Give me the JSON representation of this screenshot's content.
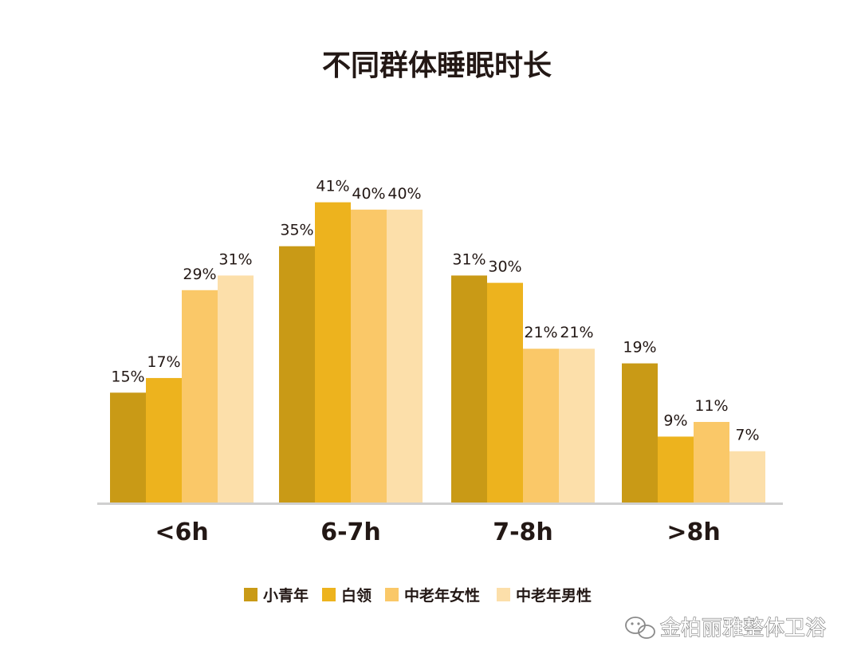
{
  "chart_data": {
    "type": "bar",
    "title": "不同群体睡眠时长",
    "categories": [
      "<6h",
      "6-7h",
      "7-8h",
      ">8h"
    ],
    "series": [
      {
        "name": "小青年",
        "color": "#C99A16",
        "values": [
          15,
          35,
          31,
          19
        ],
        "labels": [
          "15%",
          "35%",
          "31%",
          "19%"
        ]
      },
      {
        "name": "白领",
        "color": "#EDB31E",
        "values": [
          17,
          41,
          30,
          9
        ],
        "labels": [
          "17%",
          "41%",
          "30%",
          "9%"
        ]
      },
      {
        "name": "中老年女性",
        "color": "#FAC868",
        "values": [
          29,
          40,
          21,
          11
        ],
        "labels": [
          "29%",
          "40%",
          "21%",
          "11%"
        ]
      },
      {
        "name": "中老年男性",
        "color": "#FCDFAA",
        "values": [
          31,
          40,
          21,
          7
        ],
        "labels": [
          "31%",
          "40%",
          "21%",
          "7%"
        ]
      }
    ],
    "xlabel": "",
    "ylabel": "",
    "ylim": [
      0,
      45
    ],
    "grid": false,
    "legend_position": "bottom"
  },
  "watermark": {
    "text": "金柏丽雅整体卫浴",
    "icon": "wechat-icon"
  },
  "colors": {
    "axis": "#CFCFCF",
    "text": "#231815"
  }
}
